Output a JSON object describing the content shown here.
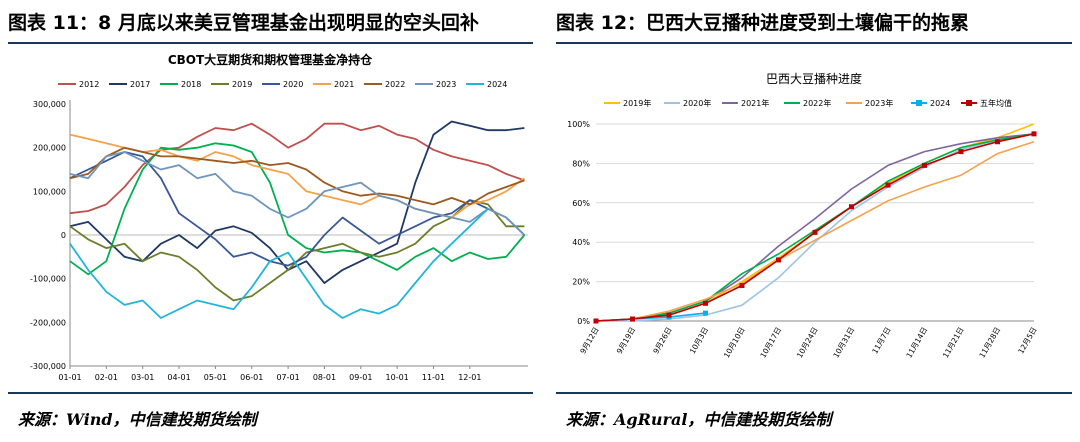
{
  "left": {
    "title": "图表 11：8 月底以来美豆管理基金出现明显的空头回补",
    "source": "来源：Wind，中信建投期货绘制"
  },
  "right": {
    "title": "图表 12：巴西大豆播种进度受到土壤偏干的拖累",
    "source": "来源：AgRural，中信建投期货绘制"
  },
  "chart_data": [
    {
      "type": "line",
      "title": "CBOT大豆期货和期权管理基金净持仓",
      "x_ticks": [
        "01-01",
        "02-01",
        "03-01",
        "04-01",
        "05-01",
        "06-01",
        "07-01",
        "08-01",
        "09-01",
        "10-01",
        "11-01",
        "12-01"
      ],
      "y_ticks": [
        "300,000",
        "200,000",
        "100,000",
        "0",
        "-100,000",
        "-200,000",
        "-300,000"
      ],
      "ylim": [
        -300000,
        300000
      ],
      "grid": false,
      "legend_position": "top",
      "series": [
        {
          "name": "2012",
          "color": "#c0504d",
          "x": [
            0,
            0.5,
            1,
            1.5,
            2,
            2.5,
            3,
            3.5,
            4,
            4.5,
            5,
            5.5,
            6,
            6.5,
            7,
            7.5,
            8,
            8.5,
            9,
            9.5,
            10,
            10.5,
            11,
            11.5,
            12,
            12.5
          ],
          "values": [
            50000,
            55000,
            70000,
            110000,
            160000,
            195000,
            200000,
            225000,
            245000,
            240000,
            255000,
            230000,
            200000,
            220000,
            255000,
            255000,
            240000,
            250000,
            230000,
            220000,
            195000,
            180000,
            170000,
            160000,
            140000,
            125000
          ]
        },
        {
          "name": "2017",
          "color": "#1f3864",
          "x": [
            0,
            0.5,
            1,
            1.5,
            2,
            2.5,
            3,
            3.5,
            4,
            4.5,
            5,
            5.5,
            6,
            6.5,
            7,
            7.5,
            8,
            8.5,
            9,
            9.5,
            10,
            10.5,
            11,
            11.5,
            12,
            12.5
          ],
          "values": [
            20000,
            30000,
            -10000,
            -50000,
            -60000,
            -20000,
            0,
            -30000,
            10000,
            20000,
            5000,
            -30000,
            -80000,
            -60000,
            -110000,
            -80000,
            -60000,
            -40000,
            -20000,
            120000,
            230000,
            260000,
            250000,
            240000,
            240000,
            245000
          ]
        },
        {
          "name": "2018",
          "color": "#00b050",
          "x": [
            0,
            0.5,
            1,
            1.5,
            2,
            2.5,
            3,
            3.5,
            4,
            4.5,
            5,
            5.5,
            6,
            6.5,
            7,
            7.5,
            8,
            8.5,
            9,
            9.5,
            10,
            10.5,
            11,
            11.5,
            12,
            12.5
          ],
          "values": [
            -60000,
            -90000,
            -60000,
            60000,
            150000,
            200000,
            195000,
            200000,
            210000,
            205000,
            190000,
            120000,
            0,
            -30000,
            -40000,
            -35000,
            -40000,
            -60000,
            -80000,
            -50000,
            -30000,
            -60000,
            -40000,
            -55000,
            -50000,
            0
          ]
        },
        {
          "name": "2019",
          "color": "#6b7f2a",
          "x": [
            0,
            0.5,
            1,
            1.5,
            2,
            2.5,
            3,
            3.5,
            4,
            4.5,
            5,
            5.5,
            6,
            6.5,
            7,
            7.5,
            8,
            8.5,
            9,
            9.5,
            10,
            10.5,
            11,
            11.5,
            12,
            12.5
          ],
          "values": [
            20000,
            -10000,
            -30000,
            -20000,
            -60000,
            -40000,
            -50000,
            -80000,
            -120000,
            -150000,
            -140000,
            -110000,
            -80000,
            -40000,
            -30000,
            -20000,
            -40000,
            -50000,
            -40000,
            -20000,
            20000,
            40000,
            80000,
            70000,
            20000,
            20000
          ]
        },
        {
          "name": "2020",
          "color": "#3a5795",
          "x": [
            0,
            0.5,
            1,
            1.5,
            2,
            2.5,
            3,
            3.5,
            4,
            4.5,
            5,
            5.5,
            6,
            6.5,
            7,
            7.5,
            8,
            8.5,
            9,
            9.5,
            10,
            10.5,
            11,
            11.5,
            12,
            12.5
          ],
          "values": [
            130000,
            150000,
            170000,
            190000,
            180000,
            130000,
            50000,
            20000,
            -10000,
            -50000,
            -40000,
            -60000,
            -70000,
            -50000,
            0,
            40000,
            10000,
            -20000,
            0,
            20000,
            40000,
            50000,
            80000,
            60000,
            40000,
            0
          ]
        },
        {
          "name": "2021",
          "color": "#f4a24b",
          "x": [
            0,
            0.5,
            1,
            1.5,
            2,
            2.5,
            3,
            3.5,
            4,
            4.5,
            5,
            5.5,
            6,
            6.5,
            7,
            7.5,
            8,
            8.5,
            9,
            9.5,
            10,
            10.5,
            11,
            11.5,
            12,
            12.5
          ],
          "values": [
            230000,
            220000,
            210000,
            200000,
            190000,
            195000,
            180000,
            170000,
            190000,
            180000,
            160000,
            150000,
            140000,
            100000,
            90000,
            80000,
            70000,
            90000,
            80000,
            60000,
            50000,
            40000,
            70000,
            80000,
            100000,
            130000
          ]
        },
        {
          "name": "2022",
          "color": "#9c5a1e",
          "x": [
            0,
            0.5,
            1,
            1.5,
            2,
            2.5,
            3,
            3.5,
            4,
            4.5,
            5,
            5.5,
            6,
            6.5,
            7,
            7.5,
            8,
            8.5,
            9,
            9.5,
            10,
            10.5,
            11,
            11.5,
            12,
            12.5
          ],
          "values": [
            130000,
            140000,
            180000,
            200000,
            190000,
            180000,
            180000,
            175000,
            170000,
            165000,
            170000,
            160000,
            165000,
            150000,
            120000,
            100000,
            90000,
            95000,
            90000,
            80000,
            70000,
            85000,
            70000,
            95000,
            110000,
            125000
          ]
        },
        {
          "name": "2023",
          "color": "#6f94bd",
          "x": [
            0,
            0.5,
            1,
            1.5,
            2,
            2.5,
            3,
            3.5,
            4,
            4.5,
            5,
            5.5,
            6,
            6.5,
            7,
            7.5,
            8,
            8.5,
            9,
            9.5,
            10,
            10.5,
            11,
            11.5,
            12,
            12.5
          ],
          "values": [
            140000,
            130000,
            180000,
            190000,
            170000,
            150000,
            160000,
            130000,
            140000,
            100000,
            90000,
            60000,
            40000,
            60000,
            100000,
            110000,
            120000,
            90000,
            80000,
            60000,
            50000,
            40000,
            30000,
            60000,
            40000,
            0
          ]
        },
        {
          "name": "2024",
          "color": "#23b5d9",
          "x": [
            0,
            0.5,
            1,
            1.5,
            2,
            2.5,
            3,
            3.5,
            4,
            4.5,
            5,
            5.5,
            6,
            6.5,
            7,
            7.5,
            8,
            8.5,
            9,
            9.5,
            10,
            10.5,
            11,
            11.5
          ],
          "values": [
            -20000,
            -80000,
            -130000,
            -160000,
            -150000,
            -190000,
            -170000,
            -150000,
            -160000,
            -170000,
            -120000,
            -60000,
            -40000,
            -100000,
            -160000,
            -190000,
            -170000,
            -180000,
            -160000,
            -110000,
            -60000,
            -20000,
            20000,
            60000
          ]
        }
      ]
    },
    {
      "type": "line",
      "title": "巴西大豆播种进度",
      "x_ticks": [
        "9月12日",
        "9月19日",
        "9月26日",
        "10月3日",
        "10月10日",
        "10月17日",
        "10月24日",
        "10月31日",
        "11月7日",
        "11月14日",
        "11月21日",
        "11月28日",
        "12月5日"
      ],
      "y_ticks": [
        "100%",
        "80%",
        "60%",
        "40%",
        "20%",
        "0%"
      ],
      "ylim": [
        0,
        100
      ],
      "grid": true,
      "legend_position": "top",
      "series": [
        {
          "name": "2019年",
          "color": "#ffc000",
          "x": [
            0,
            1,
            2,
            3,
            4,
            5,
            6,
            7,
            8,
            9,
            10,
            11,
            12
          ],
          "values": [
            0,
            1,
            3,
            9,
            20,
            32,
            45,
            58,
            70,
            80,
            88,
            93,
            100
          ]
        },
        {
          "name": "2020年",
          "color": "#9dc3e6",
          "x": [
            0,
            1,
            2,
            3,
            4,
            5,
            6,
            7,
            8,
            9,
            10,
            11,
            12
          ],
          "values": [
            0,
            0,
            1,
            3,
            8,
            22,
            40,
            56,
            68,
            78,
            87,
            92,
            95
          ]
        },
        {
          "name": "2021年",
          "color": "#8064a2",
          "x": [
            0,
            1,
            2,
            3,
            4,
            5,
            6,
            7,
            8,
            9,
            10,
            11,
            12
          ],
          "values": [
            0,
            1,
            4,
            10,
            22,
            38,
            52,
            67,
            79,
            86,
            90,
            93,
            95
          ]
        },
        {
          "name": "2022年",
          "color": "#00b050",
          "x": [
            0,
            1,
            2,
            3,
            4,
            5,
            6,
            7,
            8,
            9,
            10,
            11,
            12
          ],
          "values": [
            0,
            1,
            4,
            10,
            24,
            34,
            46,
            58,
            71,
            80,
            88,
            92,
            95
          ]
        },
        {
          "name": "2023年",
          "color": "#f4a24b",
          "x": [
            0,
            1,
            2,
            3,
            4,
            5,
            6,
            7,
            8,
            9,
            10,
            11,
            12
          ],
          "values": [
            0,
            1,
            5,
            11,
            19,
            31,
            41,
            51,
            61,
            68,
            74,
            85,
            91
          ]
        },
        {
          "name": "2024",
          "color": "#00b0f0",
          "x": [
            0,
            1,
            2,
            3
          ],
          "values": [
            0,
            1,
            2,
            4
          ]
        },
        {
          "name": "五年均值",
          "color": "#c00000",
          "x": [
            0,
            1,
            2,
            3,
            4,
            5,
            6,
            7,
            8,
            9,
            10,
            11,
            12
          ],
          "values": [
            0,
            1,
            3,
            9,
            18,
            31,
            45,
            58,
            69,
            79,
            86,
            91,
            95
          ]
        }
      ]
    }
  ]
}
